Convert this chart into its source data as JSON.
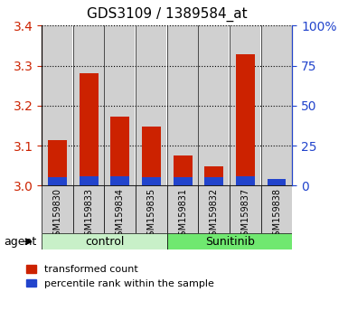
{
  "title": "GDS3109 / 1389584_at",
  "samples": [
    "GSM159830",
    "GSM159833",
    "GSM159834",
    "GSM159835",
    "GSM159831",
    "GSM159832",
    "GSM159837",
    "GSM159838"
  ],
  "red_values": [
    3.113,
    3.282,
    3.172,
    3.148,
    3.076,
    3.048,
    3.328,
    3.006
  ],
  "blue_values": [
    5.5,
    6.0,
    6.0,
    5.5,
    5.5,
    5.5,
    6.0,
    4.0
  ],
  "ylim_left": [
    3.0,
    3.4
  ],
  "ylim_right": [
    0,
    100
  ],
  "yticks_left": [
    3.0,
    3.1,
    3.2,
    3.3,
    3.4
  ],
  "yticks_right": [
    0,
    25,
    50,
    75,
    100
  ],
  "ytick_labels_right": [
    "0",
    "25",
    "50",
    "75",
    "100%"
  ],
  "groups": [
    {
      "label": "control",
      "indices": [
        0,
        1,
        2,
        3
      ],
      "color": "#c8f0c8"
    },
    {
      "label": "Sunitinib",
      "indices": [
        4,
        5,
        6,
        7
      ],
      "color": "#70e870"
    }
  ],
  "red_color": "#cc2200",
  "blue_color": "#2244cc",
  "bar_bg_color": "#d0d0d0",
  "grid_color": "#000000",
  "left_axis_color": "#cc2200",
  "right_axis_color": "#2244cc",
  "legend_red": "transformed count",
  "legend_blue": "percentile rank within the sample",
  "agent_label": "agent",
  "bar_width": 0.6
}
